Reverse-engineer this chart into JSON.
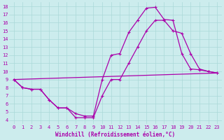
{
  "xlabel": "Windchill (Refroidissement éolien,°C)",
  "background_color": "#cceced",
  "grid_color": "#aad8d8",
  "line_color": "#aa00aa",
  "xlim": [
    -0.5,
    23.5
  ],
  "ylim": [
    3.5,
    18.5
  ],
  "yticks": [
    4,
    5,
    6,
    7,
    8,
    9,
    10,
    11,
    12,
    13,
    14,
    15,
    16,
    17,
    18
  ],
  "xticks": [
    0,
    1,
    2,
    3,
    4,
    5,
    6,
    7,
    8,
    9,
    10,
    11,
    12,
    13,
    14,
    15,
    16,
    17,
    18,
    19,
    20,
    21,
    22,
    23
  ],
  "line1": {
    "x": [
      0,
      1,
      2,
      3,
      4,
      5,
      6,
      7,
      8,
      9,
      10,
      11,
      12,
      13,
      14,
      15,
      16,
      17,
      18,
      19,
      20,
      21,
      22,
      23
    ],
    "y": [
      9.0,
      8.0,
      7.8,
      7.8,
      6.5,
      5.5,
      5.5,
      4.8,
      4.5,
      4.5,
      9.0,
      12.0,
      12.2,
      14.8,
      16.3,
      17.8,
      17.9,
      16.4,
      16.3,
      12.2,
      10.3,
      10.2,
      10.0,
      9.8
    ]
  },
  "line2": {
    "x": [
      0,
      1,
      2,
      3,
      4,
      5,
      6,
      7,
      8,
      9,
      10,
      11,
      12,
      13,
      14,
      15,
      16,
      17,
      18,
      19,
      20,
      21,
      22,
      23
    ],
    "y": [
      9.0,
      8.0,
      7.8,
      7.8,
      6.5,
      5.5,
      5.5,
      4.3,
      4.3,
      4.3,
      7.0,
      9.0,
      9.0,
      11.0,
      13.0,
      15.0,
      16.3,
      16.3,
      15.0,
      14.7,
      12.2,
      10.3,
      10.0,
      9.8
    ]
  },
  "line3": {
    "x": [
      0,
      23
    ],
    "y": [
      9.0,
      9.8
    ]
  },
  "xlabel_fontsize": 5.5,
  "tick_fontsize": 5.0
}
